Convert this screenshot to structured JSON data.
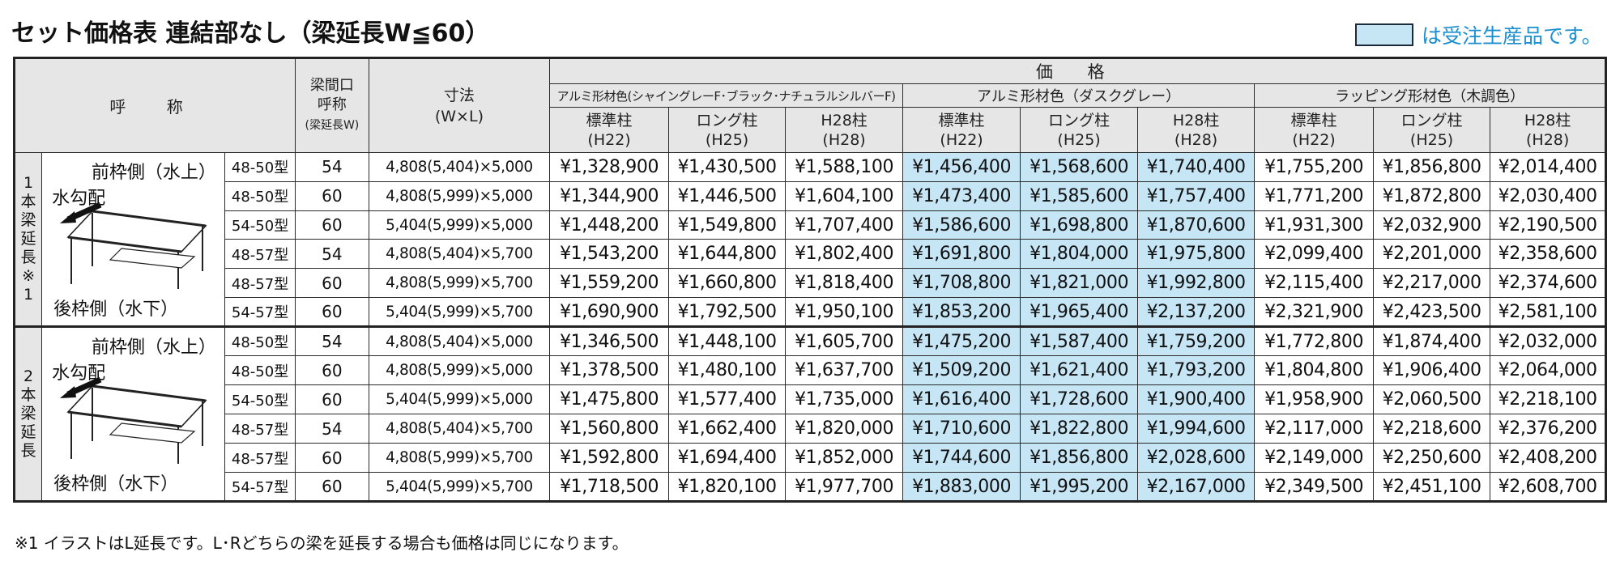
{
  "title": "セット価格表 連結部なし（梁延長W≦60）",
  "legend_text": "は受注生産品です。",
  "legend_color": "#c6e6f6",
  "header": {
    "name": "呼 称",
    "span_line1": "梁間口",
    "span_line2": "呼称",
    "span_line3": "(梁延長W)",
    "size_line1": "寸法",
    "size_line2": "(W×L)",
    "price": "価 格",
    "groups": [
      "アルミ形材色(シャイングレーF･ブラック･ナチュラルシルバーF)",
      "アルミ形材色（ダスクグレー）",
      "ラッピング形材色（木調色）"
    ],
    "cols": [
      {
        "line1": "標準柱",
        "line2": "(H22)"
      },
      {
        "line1": "ロング柱",
        "line2": "(H25)"
      },
      {
        "line1": "H28柱",
        "line2": "(H28)"
      }
    ]
  },
  "illus": {
    "top": "前枠側（水上）",
    "slope": "水勾配",
    "bottom": "後枠側（水下）",
    "icon": "pergola-diagram-icon"
  },
  "groups": [
    {
      "label": "1本梁延長※1",
      "rows": [
        {
          "model": "48-50型",
          "span": "54",
          "dim": "4,808(5,404)×5,000",
          "prices": [
            "¥1,328,900",
            "¥1,430,500",
            "¥1,588,100",
            "¥1,456,400",
            "¥1,568,600",
            "¥1,740,400",
            "¥1,755,200",
            "¥1,856,800",
            "¥2,014,400"
          ]
        },
        {
          "model": "48-50型",
          "span": "60",
          "dim": "4,808(5,999)×5,000",
          "prices": [
            "¥1,344,900",
            "¥1,446,500",
            "¥1,604,100",
            "¥1,473,400",
            "¥1,585,600",
            "¥1,757,400",
            "¥1,771,200",
            "¥1,872,800",
            "¥2,030,400"
          ]
        },
        {
          "model": "54-50型",
          "span": "60",
          "dim": "5,404(5,999)×5,000",
          "prices": [
            "¥1,448,200",
            "¥1,549,800",
            "¥1,707,400",
            "¥1,586,600",
            "¥1,698,800",
            "¥1,870,600",
            "¥1,931,300",
            "¥2,032,900",
            "¥2,190,500"
          ]
        },
        {
          "model": "48-57型",
          "span": "54",
          "dim": "4,808(5,404)×5,700",
          "prices": [
            "¥1,543,200",
            "¥1,644,800",
            "¥1,802,400",
            "¥1,691,800",
            "¥1,804,000",
            "¥1,975,800",
            "¥2,099,400",
            "¥2,201,000",
            "¥2,358,600"
          ]
        },
        {
          "model": "48-57型",
          "span": "60",
          "dim": "4,808(5,999)×5,700",
          "prices": [
            "¥1,559,200",
            "¥1,660,800",
            "¥1,818,400",
            "¥1,708,800",
            "¥1,821,000",
            "¥1,992,800",
            "¥2,115,400",
            "¥2,217,000",
            "¥2,374,600"
          ]
        },
        {
          "model": "54-57型",
          "span": "60",
          "dim": "5,404(5,999)×5,700",
          "prices": [
            "¥1,690,900",
            "¥1,792,500",
            "¥1,950,100",
            "¥1,853,200",
            "¥1,965,400",
            "¥2,137,200",
            "¥2,321,900",
            "¥2,423,500",
            "¥2,581,100"
          ]
        }
      ]
    },
    {
      "label": "2本梁延長",
      "rows": [
        {
          "model": "48-50型",
          "span": "54",
          "dim": "4,808(5,404)×5,000",
          "prices": [
            "¥1,346,500",
            "¥1,448,100",
            "¥1,605,700",
            "¥1,475,200",
            "¥1,587,400",
            "¥1,759,200",
            "¥1,772,800",
            "¥1,874,400",
            "¥2,032,000"
          ]
        },
        {
          "model": "48-50型",
          "span": "60",
          "dim": "4,808(5,999)×5,000",
          "prices": [
            "¥1,378,500",
            "¥1,480,100",
            "¥1,637,700",
            "¥1,509,200",
            "¥1,621,400",
            "¥1,793,200",
            "¥1,804,800",
            "¥1,906,400",
            "¥2,064,000"
          ]
        },
        {
          "model": "54-50型",
          "span": "60",
          "dim": "5,404(5,999)×5,000",
          "prices": [
            "¥1,475,800",
            "¥1,577,400",
            "¥1,735,000",
            "¥1,616,400",
            "¥1,728,600",
            "¥1,900,400",
            "¥1,958,900",
            "¥2,060,500",
            "¥2,218,100"
          ]
        },
        {
          "model": "48-57型",
          "span": "54",
          "dim": "4,808(5,404)×5,700",
          "prices": [
            "¥1,560,800",
            "¥1,662,400",
            "¥1,820,000",
            "¥1,710,600",
            "¥1,822,800",
            "¥1,994,600",
            "¥2,117,000",
            "¥2,218,600",
            "¥2,376,200"
          ]
        },
        {
          "model": "48-57型",
          "span": "60",
          "dim": "4,808(5,999)×5,700",
          "prices": [
            "¥1,592,800",
            "¥1,694,400",
            "¥1,852,000",
            "¥1,744,600",
            "¥1,856,800",
            "¥2,028,600",
            "¥2,149,000",
            "¥2,250,600",
            "¥2,408,200"
          ]
        },
        {
          "model": "54-57型",
          "span": "60",
          "dim": "5,404(5,999)×5,700",
          "prices": [
            "¥1,718,500",
            "¥1,820,100",
            "¥1,977,700",
            "¥1,883,000",
            "¥1,995,200",
            "¥2,167,000",
            "¥2,349,500",
            "¥2,451,100",
            "¥2,608,700"
          ]
        }
      ]
    }
  ],
  "footnote": "※1 イラストはL延長です。L･Rどちらの梁を延長する場合も価格は同じになります。"
}
